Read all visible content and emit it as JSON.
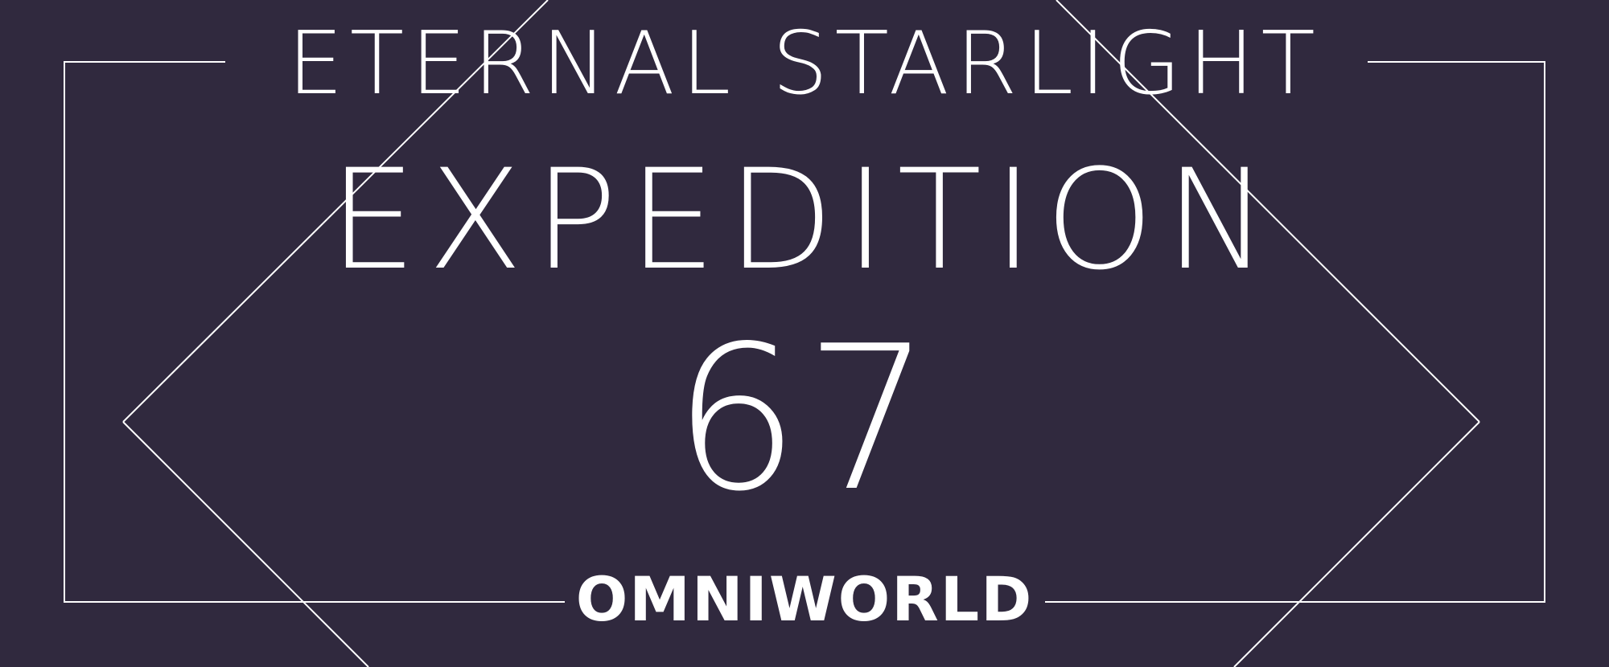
{
  "poster": {
    "eyebrow": "ETERNAL STARLIGHT",
    "headline": "EXPEDITION",
    "number": "67",
    "brand": "OMNIWORLD"
  },
  "colors": {
    "background": "#30293e",
    "foreground": "#ffffff"
  }
}
